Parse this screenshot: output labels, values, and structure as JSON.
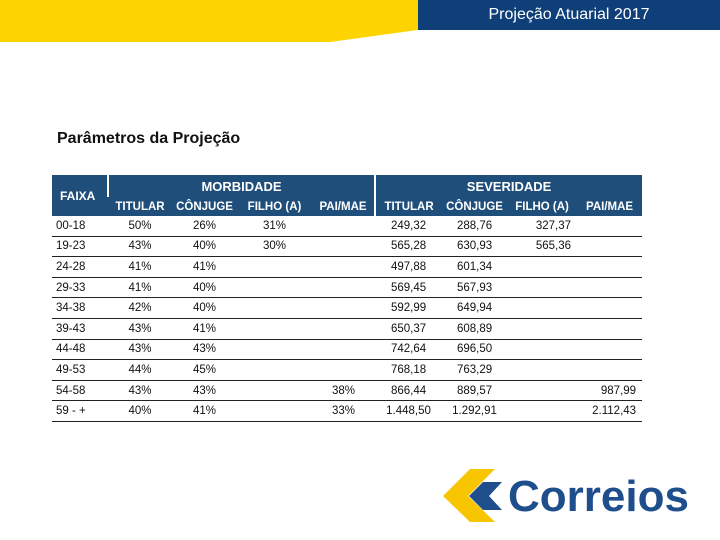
{
  "header": {
    "title": "Projeção Atuarial 2017"
  },
  "section": {
    "title": "Parâmetros da Projeção"
  },
  "table": {
    "col_faixa": "FAIXA",
    "group_morbidade": "MORBIDADE",
    "group_severidade": "SEVERIDADE",
    "sub_headers": [
      "TITULAR",
      "CÔNJUGE",
      "FILHO (A)",
      "PAI/MAE",
      "TITULAR",
      "CÔNJUGE",
      "FILHO (A)",
      "PAI/MAE"
    ],
    "rows": [
      [
        "00-18",
        "50%",
        "26%",
        "31%",
        "",
        "249,32",
        "288,76",
        "327,37",
        ""
      ],
      [
        "19-23",
        "43%",
        "40%",
        "30%",
        "",
        "565,28",
        "630,93",
        "565,36",
        ""
      ],
      [
        "24-28",
        "41%",
        "41%",
        "",
        "",
        "497,88",
        "601,34",
        "",
        ""
      ],
      [
        "29-33",
        "41%",
        "40%",
        "",
        "",
        "569,45",
        "567,93",
        "",
        ""
      ],
      [
        "34-38",
        "42%",
        "40%",
        "",
        "",
        "592,99",
        "649,94",
        "",
        ""
      ],
      [
        "39-43",
        "43%",
        "41%",
        "",
        "",
        "650,37",
        "608,89",
        "",
        ""
      ],
      [
        "44-48",
        "43%",
        "43%",
        "",
        "",
        "742,64",
        "696,50",
        "",
        ""
      ],
      [
        "49-53",
        "44%",
        "45%",
        "",
        "",
        "768,18",
        "763,29",
        "",
        ""
      ],
      [
        "54-58",
        "43%",
        "43%",
        "",
        "38%",
        "866,44",
        "889,57",
        "",
        "987,99"
      ],
      [
        "59 - +",
        "40%",
        "41%",
        "",
        "33%",
        "1.448,50",
        "1.292,91",
        "",
        "2.112,43"
      ]
    ]
  },
  "logo": {
    "text": "Correios",
    "colors": {
      "blue": "#1f4e8c",
      "yellow": "#f7c600"
    }
  },
  "colors": {
    "banner_yellow": "#fdd400",
    "banner_blue": "#0f3f78",
    "table_header": "#1f4e7b"
  }
}
